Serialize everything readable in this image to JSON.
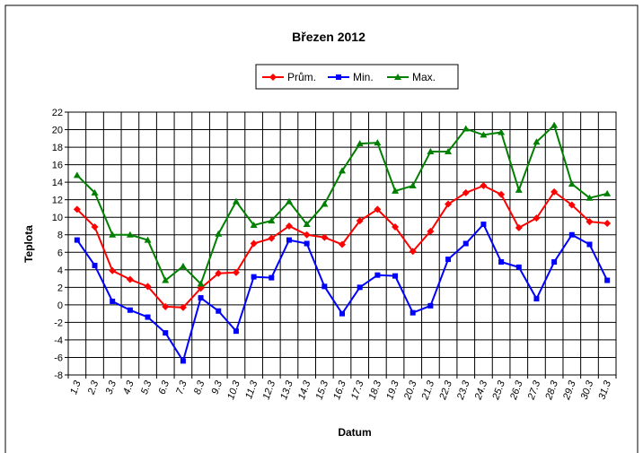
{
  "chart_data": {
    "type": "line",
    "title": "Březen 2012",
    "xlabel": "Datum",
    "ylabel": "Teplota",
    "categories": [
      "1.3",
      "2.3",
      "3.3",
      "4.3",
      "5.3",
      "6.3",
      "7.3",
      "8.3",
      "9.3",
      "10.3",
      "11.3",
      "12.3",
      "13.3",
      "14.3",
      "15.3",
      "16.3",
      "17.3",
      "18.3",
      "19.3",
      "20.3",
      "21.3",
      "22.3",
      "23.3",
      "24.3",
      "25.3",
      "26.3",
      "27.3",
      "28.3",
      "29.3",
      "30.3",
      "31.3"
    ],
    "series": [
      {
        "name": "Prům.",
        "color": "#ff0000",
        "marker": "diamond",
        "values": [
          10.9,
          8.9,
          3.9,
          2.9,
          2.1,
          -0.2,
          -0.3,
          1.9,
          3.6,
          3.7,
          7.0,
          7.6,
          9.0,
          8.0,
          7.7,
          6.9,
          9.6,
          10.9,
          8.9,
          6.1,
          8.4,
          11.5,
          12.8,
          13.6,
          12.6,
          8.8,
          9.9,
          12.9,
          11.4,
          9.5,
          9.3
        ]
      },
      {
        "name": "Min.",
        "color": "#0000ff",
        "marker": "square",
        "values": [
          7.4,
          4.5,
          0.4,
          -0.6,
          -1.4,
          -3.2,
          -6.4,
          0.8,
          -0.7,
          -3.0,
          3.2,
          3.1,
          7.4,
          7.0,
          2.1,
          -1.0,
          2.0,
          3.4,
          3.3,
          -0.9,
          -0.1,
          5.2,
          7.0,
          9.2,
          4.9,
          4.3,
          0.7,
          4.9,
          8.0,
          6.9,
          2.8
        ]
      },
      {
        "name": "Max.",
        "color": "#008000",
        "marker": "triangle",
        "values": [
          14.8,
          12.8,
          8.0,
          8.0,
          7.4,
          2.8,
          4.4,
          2.4,
          8.1,
          11.8,
          9.1,
          9.6,
          11.8,
          9.2,
          11.5,
          15.3,
          18.4,
          18.5,
          13.0,
          13.6,
          17.5,
          17.5,
          20.1,
          19.4,
          19.7,
          13.1,
          18.6,
          20.5,
          13.8,
          12.2,
          12.7
        ]
      }
    ],
    "ylim": [
      -8,
      22
    ],
    "yticks": [
      -8,
      -6,
      -4,
      -2,
      0,
      2,
      4,
      6,
      8,
      10,
      12,
      14,
      16,
      18,
      20,
      22
    ],
    "grid": true,
    "legend": "top"
  }
}
